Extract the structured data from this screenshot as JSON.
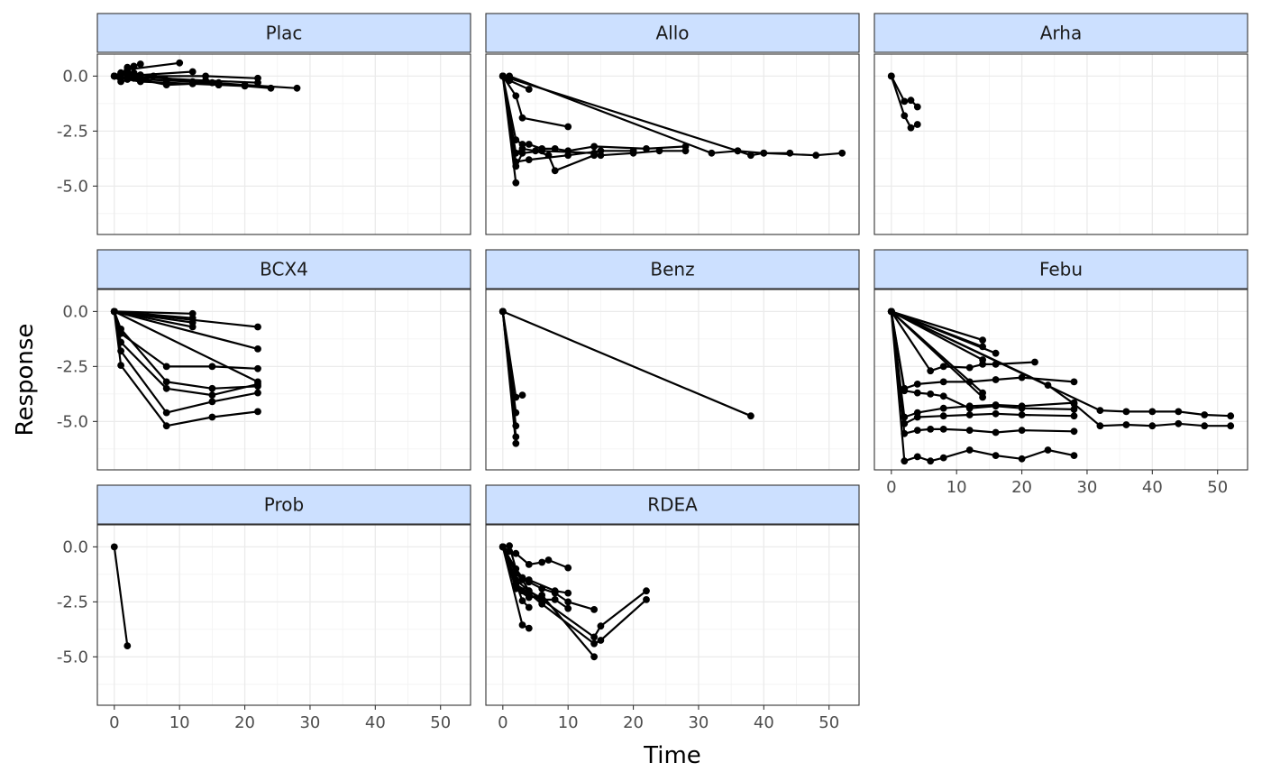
{
  "chart_data": {
    "type": "line",
    "xlabel": "Time",
    "ylabel": "Response",
    "xlim": [
      -2.6,
      54.6
    ],
    "ylim": [
      -7.2,
      1.0
    ],
    "xticks": [
      0,
      10,
      20,
      30,
      40,
      50
    ],
    "yticks": [
      0,
      -2.5,
      -5
    ],
    "ytick_labels": [
      "0.0",
      "-2.5",
      "-5.0"
    ],
    "grid": true,
    "strip_color": "#cce0ff",
    "line_color": "#000000",
    "panels": [
      {
        "label": "Plac",
        "series": [
          {
            "x": [
              0,
              1,
              2,
              4,
              8,
              12,
              15,
              20,
              28
            ],
            "y": [
              0,
              -0.05,
              -0.1,
              -0.15,
              -0.2,
              -0.25,
              -0.3,
              -0.4,
              -0.55
            ]
          },
          {
            "x": [
              0,
              1,
              2,
              3,
              4
            ],
            "y": [
              0,
              0.05,
              0.4,
              0.45,
              0.55
            ]
          },
          {
            "x": [
              0,
              1,
              2,
              10
            ],
            "y": [
              0,
              0.15,
              0.3,
              0.6
            ]
          },
          {
            "x": [
              0,
              2,
              4,
              12
            ],
            "y": [
              0,
              0.1,
              0.05,
              0.2
            ]
          },
          {
            "x": [
              0,
              1,
              3,
              8,
              16
            ],
            "y": [
              0,
              -0.25,
              -0.1,
              -0.4,
              -0.3
            ]
          },
          {
            "x": [
              0,
              2,
              4,
              6,
              14,
              22
            ],
            "y": [
              0,
              -0.1,
              -0.2,
              0.0,
              0.0,
              -0.1
            ]
          },
          {
            "x": [
              0,
              2,
              4,
              8,
              12,
              16,
              20,
              24
            ],
            "y": [
              0,
              -0.15,
              -0.25,
              -0.3,
              -0.35,
              -0.4,
              -0.45,
              -0.55
            ]
          },
          {
            "x": [
              0,
              1,
              2,
              3,
              4,
              14,
              22
            ],
            "y": [
              0,
              0.1,
              0.05,
              0.0,
              -0.05,
              -0.2,
              -0.3
            ]
          },
          {
            "x": [
              0,
              1,
              2,
              3,
              4,
              16
            ],
            "y": [
              0,
              0.1,
              0.2,
              0.15,
              0.05,
              -0.4
            ]
          }
        ]
      },
      {
        "label": "Allo",
        "series": [
          {
            "x": [
              0,
              1,
              4
            ],
            "y": [
              0,
              -0.2,
              -0.6
            ]
          },
          {
            "x": [
              0,
              2,
              3,
              10
            ],
            "y": [
              0,
              -0.9,
              -1.9,
              -2.3
            ]
          },
          {
            "x": [
              0,
              2,
              3,
              4,
              6,
              8,
              10,
              14,
              22,
              28
            ],
            "y": [
              0,
              -2.9,
              -3.1,
              -3.1,
              -3.3,
              -3.3,
              -3.4,
              -3.2,
              -3.3,
              -3.2
            ]
          },
          {
            "x": [
              0,
              2,
              3,
              5,
              7,
              8,
              14,
              15,
              20,
              24,
              28
            ],
            "y": [
              0,
              -3.5,
              -3.3,
              -3.4,
              -3.6,
              -4.3,
              -3.6,
              -3.6,
              -3.5,
              -3.4,
              -3.4
            ]
          },
          {
            "x": [
              0,
              2,
              3,
              6,
              14
            ],
            "y": [
              0,
              -4.1,
              -3.5,
              -3.4,
              -3.5
            ]
          },
          {
            "x": [
              0,
              2
            ],
            "y": [
              0,
              -4.85
            ]
          },
          {
            "x": [
              0,
              2,
              4,
              10,
              15,
              20
            ],
            "y": [
              0,
              -3.9,
              -3.8,
              -3.6,
              -3.4,
              -3.4
            ]
          },
          {
            "x": [
              0,
              1,
              36,
              38,
              40,
              44
            ],
            "y": [
              0,
              -0.1,
              -3.4,
              -3.6,
              -3.5,
              -3.5
            ]
          },
          {
            "x": [
              0,
              1,
              32,
              36,
              40,
              48,
              52
            ],
            "y": [
              0,
              0,
              -3.5,
              -3.4,
              -3.5,
              -3.6,
              -3.5
            ]
          }
        ]
      },
      {
        "label": "Arha",
        "series": [
          {
            "x": [
              0,
              2,
              3,
              4
            ],
            "y": [
              0,
              -1.15,
              -1.1,
              -1.4
            ]
          },
          {
            "x": [
              0,
              2,
              3,
              4
            ],
            "y": [
              0,
              -1.8,
              -2.35,
              -2.2
            ]
          }
        ]
      },
      {
        "label": "BCX4",
        "series": [
          {
            "x": [
              0,
              12
            ],
            "y": [
              0,
              -0.1
            ]
          },
          {
            "x": [
              0,
              12
            ],
            "y": [
              0,
              -0.3
            ]
          },
          {
            "x": [
              0,
              12
            ],
            "y": [
              0,
              -0.5
            ]
          },
          {
            "x": [
              0,
              12
            ],
            "y": [
              0,
              -0.7
            ]
          },
          {
            "x": [
              0,
              22
            ],
            "y": [
              0,
              -0.7
            ]
          },
          {
            "x": [
              0,
              22
            ],
            "y": [
              0,
              -1.7
            ]
          },
          {
            "x": [
              0,
              22
            ],
            "y": [
              0,
              -3.2
            ]
          },
          {
            "x": [
              0,
              1,
              8,
              15,
              22
            ],
            "y": [
              0,
              -0.8,
              -3.2,
              -3.5,
              -3.4
            ]
          },
          {
            "x": [
              0,
              1,
              8,
              15,
              22
            ],
            "y": [
              0,
              -1.0,
              -2.5,
              -2.5,
              -2.6
            ]
          },
          {
            "x": [
              0,
              1,
              8,
              15,
              22
            ],
            "y": [
              0,
              -1.4,
              -3.5,
              -3.8,
              -3.3
            ]
          },
          {
            "x": [
              0,
              1,
              8,
              15,
              22
            ],
            "y": [
              0,
              -1.8,
              -4.6,
              -4.1,
              -3.7
            ]
          },
          {
            "x": [
              0,
              1,
              8,
              15,
              22
            ],
            "y": [
              0,
              -2.45,
              -5.2,
              -4.8,
              -4.55
            ]
          }
        ]
      },
      {
        "label": "Benz",
        "series": [
          {
            "x": [
              0,
              38
            ],
            "y": [
              0,
              -4.75
            ]
          },
          {
            "x": [
              0,
              2,
              3
            ],
            "y": [
              0,
              -3.9,
              -3.8
            ]
          },
          {
            "x": [
              0,
              2
            ],
            "y": [
              0,
              -4.6
            ]
          },
          {
            "x": [
              0,
              2
            ],
            "y": [
              0,
              -5.2
            ]
          },
          {
            "x": [
              0,
              2
            ],
            "y": [
              0,
              -5.7
            ]
          },
          {
            "x": [
              0,
              2
            ],
            "y": [
              0,
              -6.0
            ]
          }
        ]
      },
      {
        "label": "Febu",
        "series": [
          {
            "x": [
              0,
              14
            ],
            "y": [
              0,
              -1.3
            ]
          },
          {
            "x": [
              0,
              14
            ],
            "y": [
              0,
              -1.6
            ]
          },
          {
            "x": [
              0,
              16
            ],
            "y": [
              0,
              -1.9
            ]
          },
          {
            "x": [
              0,
              14
            ],
            "y": [
              0,
              -2.2
            ]
          },
          {
            "x": [
              0,
              14
            ],
            "y": [
              0,
              -3.7
            ]
          },
          {
            "x": [
              0,
              14
            ],
            "y": [
              0,
              -3.9
            ]
          },
          {
            "x": [
              0,
              2,
              4,
              6,
              8,
              12,
              16,
              20,
              28
            ],
            "y": [
              0,
              -3.6,
              -3.7,
              -3.75,
              -3.85,
              -4.4,
              -4.3,
              -4.4,
              -4.45
            ]
          },
          {
            "x": [
              0,
              2,
              4,
              8,
              12,
              16,
              20,
              28
            ],
            "y": [
              0,
              -3.5,
              -3.3,
              -3.2,
              -3.2,
              -3.1,
              -3.0,
              -3.2
            ]
          },
          {
            "x": [
              0,
              2,
              4,
              8,
              12,
              16,
              20,
              28
            ],
            "y": [
              0,
              -4.8,
              -4.6,
              -4.4,
              -4.3,
              -4.25,
              -4.3,
              -4.15
            ]
          },
          {
            "x": [
              0,
              2,
              4,
              8,
              12,
              16,
              20,
              28
            ],
            "y": [
              0,
              -5.1,
              -4.8,
              -4.75,
              -4.7,
              -4.65,
              -4.7,
              -4.75
            ]
          },
          {
            "x": [
              0,
              2,
              4,
              6,
              8,
              12,
              16,
              20,
              28
            ],
            "y": [
              0,
              -5.55,
              -5.4,
              -5.35,
              -5.35,
              -5.4,
              -5.5,
              -5.4,
              -5.45
            ]
          },
          {
            "x": [
              0,
              2,
              4,
              6,
              8,
              12,
              16,
              20,
              24,
              28
            ],
            "y": [
              0,
              -6.8,
              -6.6,
              -6.8,
              -6.65,
              -6.3,
              -6.55,
              -6.7,
              -6.3,
              -6.55
            ]
          },
          {
            "x": [
              0,
              6,
              8,
              12,
              14,
              16,
              22
            ],
            "y": [
              0,
              -2.7,
              -2.5,
              -2.55,
              -2.4,
              -2.4,
              -2.3
            ]
          },
          {
            "x": [
              0,
              32,
              36,
              40,
              44,
              48,
              52
            ],
            "y": [
              0,
              -4.5,
              -4.55,
              -4.55,
              -4.55,
              -4.7,
              -4.75
            ]
          },
          {
            "x": [
              0,
              24,
              28,
              32,
              36,
              40,
              44,
              48,
              52
            ],
            "y": [
              0,
              -3.35,
              -4.2,
              -5.2,
              -5.15,
              -5.2,
              -5.1,
              -5.2,
              -5.2
            ]
          }
        ]
      },
      {
        "label": "Prob",
        "series": [
          {
            "x": [
              0,
              2
            ],
            "y": [
              0,
              -4.5
            ]
          }
        ]
      },
      {
        "label": "RDEA",
        "series": [
          {
            "x": [
              0,
              1,
              2,
              4,
              6,
              7,
              10
            ],
            "y": [
              0,
              -0.2,
              -0.3,
              -0.8,
              -0.7,
              -0.6,
              -0.95
            ]
          },
          {
            "x": [
              0,
              1,
              2,
              3,
              4,
              8,
              10
            ],
            "y": [
              0,
              0.05,
              -1.0,
              -1.4,
              -1.5,
              -2.0,
              -2.1
            ]
          },
          {
            "x": [
              0,
              2,
              3,
              4,
              6,
              8,
              10
            ],
            "y": [
              0,
              -1.8,
              -2.0,
              -2.2,
              -2.4,
              -2.4,
              -2.8
            ]
          },
          {
            "x": [
              0,
              2,
              3,
              4,
              6,
              8,
              10,
              14
            ],
            "y": [
              0,
              -1.2,
              -1.5,
              -1.6,
              -1.9,
              -2.1,
              -2.5,
              -2.85
            ]
          },
          {
            "x": [
              0,
              2,
              4,
              6,
              14,
              15,
              22
            ],
            "y": [
              0,
              -1.5,
              -2.0,
              -2.4,
              -4.1,
              -3.6,
              -2.0
            ]
          },
          {
            "x": [
              0,
              2,
              4,
              6,
              14,
              15,
              22
            ],
            "y": [
              0,
              -1.7,
              -2.1,
              -2.6,
              -4.4,
              -4.25,
              -2.4
            ]
          },
          {
            "x": [
              0,
              2,
              4,
              6,
              14
            ],
            "y": [
              0,
              -1.9,
              -2.3,
              -2.2,
              -5.0
            ]
          },
          {
            "x": [
              0,
              3,
              4
            ],
            "y": [
              0,
              -3.55,
              -3.7
            ]
          },
          {
            "x": [
              0,
              3,
              4
            ],
            "y": [
              0,
              -2.45,
              -2.75
            ]
          },
          {
            "x": [
              0,
              4,
              6
            ],
            "y": [
              0,
              -2.0,
              -2.35
            ]
          }
        ]
      }
    ]
  }
}
